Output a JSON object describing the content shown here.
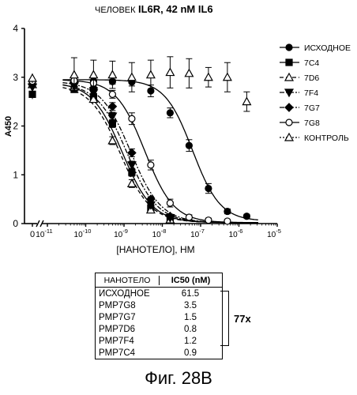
{
  "chart_data": {
    "type": "line",
    "title_prefix": "ЧЕЛОВЕК",
    "title_main": "IL6R, 42 nM IL6",
    "xlabel": "[НАНОТЕЛО], НМ",
    "ylabel": "A450",
    "xscale": "log",
    "xlim": [
      1e-11,
      1e-05
    ],
    "ylim": [
      0,
      4
    ],
    "yticks": [
      "0",
      "1",
      "2",
      "3",
      "4"
    ],
    "xtick_zero": "0",
    "xticks": [
      {
        "base": "10",
        "exp": "-11"
      },
      {
        "base": "10",
        "exp": "-10"
      },
      {
        "base": "10",
        "exp": "-9"
      },
      {
        "base": "10",
        "exp": "-8"
      },
      {
        "base": "10",
        "exp": "-7"
      },
      {
        "base": "10",
        "exp": "-6"
      },
      {
        "base": "10",
        "exp": "-5"
      }
    ],
    "legend_position": "right",
    "series": [
      {
        "name": "ИСХОДНОЕ",
        "marker": "circle",
        "fill": "filled",
        "dash": "solid",
        "top": 2.95,
        "bottom": 0.05,
        "ic50": 6.15e-08,
        "hill": 1.2,
        "zero": 2.9,
        "points": [
          [
            5e-11,
            2.92
          ],
          [
            1.6e-10,
            2.92
          ],
          [
            5e-10,
            2.91
          ],
          [
            1.6e-09,
            2.9
          ],
          [
            5e-09,
            2.72
          ],
          [
            1.6e-08,
            2.27
          ],
          [
            5e-08,
            1.6
          ],
          [
            1.6e-07,
            0.72
          ],
          [
            5e-07,
            0.25
          ],
          [
            1.6e-06,
            0.15
          ]
        ],
        "err": [
          0.08,
          0.06,
          0.05,
          0.08,
          0.12,
          0.1,
          0.12,
          0.1,
          0.05,
          0.04
        ]
      },
      {
        "name": "7C4",
        "marker": "square",
        "fill": "filled",
        "dash": "solid",
        "top": 2.9,
        "bottom": 0.02,
        "ic50": 9e-10,
        "hill": 1.1,
        "zero": 2.65,
        "points": [
          [
            5e-11,
            2.75
          ],
          [
            1.6e-10,
            2.6
          ],
          [
            5e-10,
            2.05
          ],
          [
            1.6e-09,
            1.05
          ],
          [
            5e-09,
            0.32
          ],
          [
            1.6e-08,
            0.1
          ]
        ],
        "err": [
          0.06,
          0.06,
          0.08,
          0.08,
          0.05,
          0.04
        ]
      },
      {
        "name": "7D6",
        "marker": "triangle",
        "fill": "open",
        "dash": "dashed",
        "top": 2.85,
        "bottom": 0.02,
        "ic50": 8e-10,
        "hill": 1.1,
        "zero": 2.85,
        "points": [
          [
            5e-11,
            2.8
          ],
          [
            1.6e-10,
            2.55
          ],
          [
            5e-10,
            1.7
          ],
          [
            1.6e-09,
            0.82
          ],
          [
            5e-09,
            0.28
          ],
          [
            1.6e-08,
            0.08
          ]
        ],
        "err": [
          0.06,
          0.06,
          0.08,
          0.08,
          0.05,
          0.04
        ]
      },
      {
        "name": "7F4",
        "marker": "triangle-down",
        "fill": "filled",
        "dash": "dashdot",
        "top": 2.88,
        "bottom": 0.02,
        "ic50": 1.2e-09,
        "hill": 1.1,
        "zero": 2.8,
        "points": [
          [
            5e-11,
            2.82
          ],
          [
            1.6e-10,
            2.68
          ],
          [
            5e-10,
            2.2
          ],
          [
            1.6e-09,
            1.2
          ],
          [
            5e-09,
            0.38
          ],
          [
            1.6e-08,
            0.12
          ]
        ],
        "err": [
          0.06,
          0.06,
          0.08,
          0.08,
          0.05,
          0.04
        ]
      },
      {
        "name": "7G7",
        "marker": "diamond",
        "fill": "filled",
        "dash": "dashdot",
        "top": 2.92,
        "bottom": 0.02,
        "ic50": 1.5e-09,
        "hill": 1.1,
        "zero": 2.85,
        "points": [
          [
            5e-11,
            2.9
          ],
          [
            1.6e-10,
            2.78
          ],
          [
            5e-10,
            2.4
          ],
          [
            1.6e-09,
            1.45
          ],
          [
            5e-09,
            0.5
          ],
          [
            1.6e-08,
            0.15
          ]
        ],
        "err": [
          0.06,
          0.06,
          0.08,
          0.08,
          0.05,
          0.04
        ]
      },
      {
        "name": "7G8",
        "marker": "circle",
        "fill": "open",
        "dash": "solid",
        "top": 2.95,
        "bottom": 0.02,
        "ic50": 3.5e-09,
        "hill": 1.15,
        "zero": 2.92,
        "points": [
          [
            5e-11,
            2.93
          ],
          [
            1.6e-10,
            2.88
          ],
          [
            5e-10,
            2.65
          ],
          [
            1.6e-09,
            2.15
          ],
          [
            5e-09,
            1.2
          ],
          [
            1.6e-08,
            0.42
          ],
          [
            5e-08,
            0.13
          ],
          [
            1.6e-07,
            0.07
          ],
          [
            5e-07,
            0.05
          ]
        ],
        "err": [
          0.05,
          0.05,
          0.08,
          0.12,
          0.1,
          0.08,
          0.05,
          0.04,
          0.03
        ]
      },
      {
        "name": "КОНТРОЛЬ",
        "marker": "triangle",
        "fill": "open",
        "dash": "dotted",
        "flat": true,
        "zero": 2.98,
        "points": [
          [
            5e-11,
            3.05
          ],
          [
            1.6e-10,
            3.05
          ],
          [
            5e-10,
            3.05
          ],
          [
            1.6e-09,
            3.0
          ],
          [
            5e-09,
            3.05
          ],
          [
            1.6e-08,
            3.1
          ],
          [
            5e-08,
            3.08
          ],
          [
            1.6e-07,
            3.0
          ],
          [
            5e-07,
            3.0
          ],
          [
            1.6e-06,
            2.5
          ]
        ],
        "err": [
          0.35,
          0.3,
          0.28,
          0.3,
          0.3,
          0.32,
          0.3,
          0.2,
          0.3,
          0.2
        ]
      }
    ]
  },
  "table": {
    "head": [
      "НАНОТЕЛО",
      "IC50 (nM)"
    ],
    "rows": [
      [
        "ИСХОДНОЕ",
        "61.5"
      ],
      [
        "PMP7G8",
        "3.5"
      ],
      [
        "PMP7G7",
        "1.5"
      ],
      [
        "PMP7D6",
        "0.8"
      ],
      [
        "PMP7F4",
        "1.2"
      ],
      [
        "PMP7C4",
        "0.9"
      ]
    ],
    "fold_label": "77x"
  },
  "caption": "Фиг. 28В"
}
